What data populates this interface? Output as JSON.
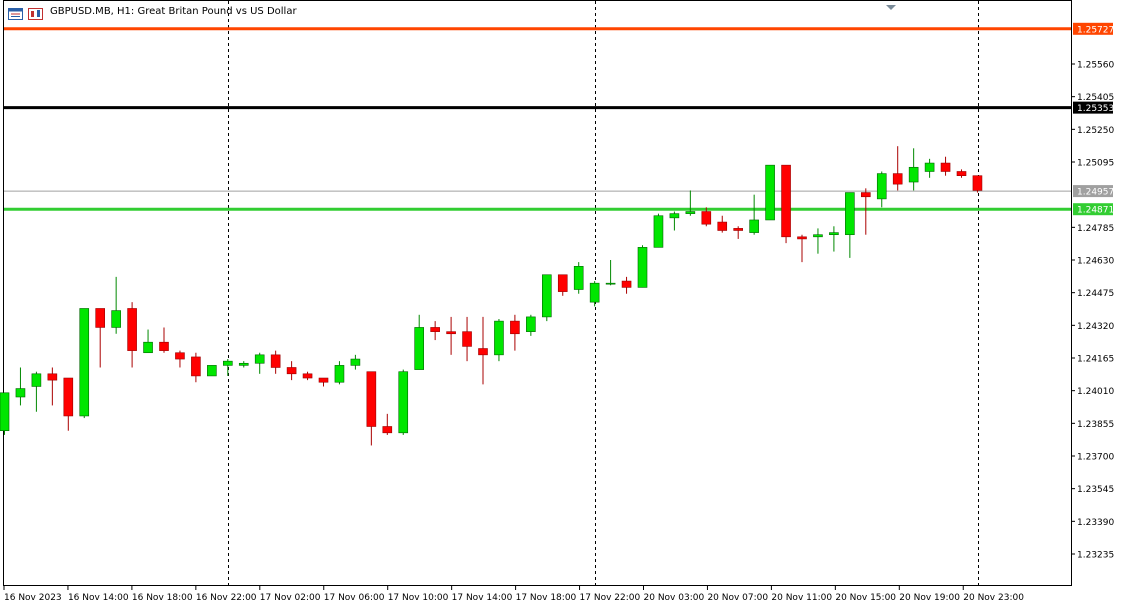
{
  "header": {
    "title": "GBPUSD.MB, H1:  Great Britan Pound vs US Dollar"
  },
  "colors": {
    "bull": "#00e600",
    "bear": "#ff0000",
    "bull_wick": "#008800",
    "bear_wick": "#aa0000",
    "resistance_line": "#ff4500",
    "black_line": "#000000",
    "green_line": "#32cd32",
    "bid_line": "#a0a0a0"
  },
  "price_axis": {
    "ticks": [
      "1.25560",
      "1.25405",
      "1.25250",
      "1.25095",
      "1.24785",
      "1.24630",
      "1.24475",
      "1.24320",
      "1.24165",
      "1.24010",
      "1.23855",
      "1.23700",
      "1.23545",
      "1.23390",
      "1.23235"
    ]
  },
  "time_axis": {
    "labels": [
      "16 Nov 2023",
      "16 Nov 14:00",
      "16 Nov 18:00",
      "16 Nov 22:00",
      "17 Nov 02:00",
      "17 Nov 06:00",
      "17 Nov 10:00",
      "17 Nov 14:00",
      "17 Nov 18:00",
      "17 Nov 22:00",
      "20 Nov 03:00",
      "20 Nov 07:00",
      "20 Nov 11:00",
      "20 Nov 15:00",
      "20 Nov 19:00",
      "20 Nov 23:00"
    ]
  },
  "levels": [
    {
      "id": "orange",
      "price": 1.25727,
      "label": "1.25727",
      "color": "#ff4500"
    },
    {
      "id": "black",
      "price": 1.25353,
      "label": "1.25353",
      "color": "#000000"
    },
    {
      "id": "bid",
      "price": 1.24957,
      "label": "1.24957",
      "color": "#a0a0a0"
    },
    {
      "id": "green",
      "price": 1.24871,
      "label": "1.24871",
      "color": "#32cd32"
    }
  ],
  "chart_data": {
    "type": "candlestick",
    "symbol": "GBPUSD.MB",
    "timeframe": "H1",
    "ylim": [
      1.231,
      1.259
    ],
    "candles": [
      {
        "o": 1.2382,
        "h": 1.24,
        "l": 1.238,
        "c": 1.24
      },
      {
        "o": 1.2398,
        "h": 1.2412,
        "l": 1.2394,
        "c": 1.2402
      },
      {
        "o": 1.2403,
        "h": 1.241,
        "l": 1.2391,
        "c": 1.2409
      },
      {
        "o": 1.2409,
        "h": 1.2412,
        "l": 1.2394,
        "c": 1.2406
      },
      {
        "o": 1.2407,
        "h": 1.2407,
        "l": 1.2382,
        "c": 1.2389
      },
      {
        "o": 1.2389,
        "h": 1.244,
        "l": 1.2388,
        "c": 1.244
      },
      {
        "o": 1.244,
        "h": 1.244,
        "l": 1.2412,
        "c": 1.2431
      },
      {
        "o": 1.2431,
        "h": 1.2455,
        "l": 1.2428,
        "c": 1.2439
      },
      {
        "o": 1.244,
        "h": 1.2443,
        "l": 1.2412,
        "c": 1.242
      },
      {
        "o": 1.2419,
        "h": 1.243,
        "l": 1.2419,
        "c": 1.2424
      },
      {
        "o": 1.2424,
        "h": 1.2431,
        "l": 1.2419,
        "c": 1.242
      },
      {
        "o": 1.2419,
        "h": 1.242,
        "l": 1.2412,
        "c": 1.2416
      },
      {
        "o": 1.2417,
        "h": 1.2419,
        "l": 1.2405,
        "c": 1.2408
      },
      {
        "o": 1.2408,
        "h": 1.2413,
        "l": 1.2408,
        "c": 1.2413
      },
      {
        "o": 1.2413,
        "h": 1.2416,
        "l": 1.2408,
        "c": 1.2415
      },
      {
        "o": 1.2413,
        "h": 1.2415,
        "l": 1.2412,
        "c": 1.2414
      },
      {
        "o": 1.2414,
        "h": 1.2419,
        "l": 1.2409,
        "c": 1.2418
      },
      {
        "o": 1.2418,
        "h": 1.242,
        "l": 1.2409,
        "c": 1.2412
      },
      {
        "o": 1.2412,
        "h": 1.2415,
        "l": 1.2406,
        "c": 1.2409
      },
      {
        "o": 1.2409,
        "h": 1.241,
        "l": 1.2406,
        "c": 1.2407
      },
      {
        "o": 1.2407,
        "h": 1.2407,
        "l": 1.2403,
        "c": 1.2405
      },
      {
        "o": 1.2405,
        "h": 1.2415,
        "l": 1.2404,
        "c": 1.2413
      },
      {
        "o": 1.2413,
        "h": 1.2418,
        "l": 1.2411,
        "c": 1.2416
      },
      {
        "o": 1.241,
        "h": 1.241,
        "l": 1.2375,
        "c": 1.2384
      },
      {
        "o": 1.2384,
        "h": 1.239,
        "l": 1.238,
        "c": 1.2381
      },
      {
        "o": 1.2381,
        "h": 1.2411,
        "l": 1.238,
        "c": 1.241
      },
      {
        "o": 1.2411,
        "h": 1.2437,
        "l": 1.2411,
        "c": 1.2431
      },
      {
        "o": 1.2431,
        "h": 1.2434,
        "l": 1.2425,
        "c": 1.2429
      },
      {
        "o": 1.2429,
        "h": 1.2436,
        "l": 1.2418,
        "c": 1.2428
      },
      {
        "o": 1.2429,
        "h": 1.2436,
        "l": 1.2415,
        "c": 1.2422
      },
      {
        "o": 1.2421,
        "h": 1.2436,
        "l": 1.2404,
        "c": 1.2418
      },
      {
        "o": 1.2418,
        "h": 1.2435,
        "l": 1.2415,
        "c": 1.2434
      },
      {
        "o": 1.2434,
        "h": 1.2437,
        "l": 1.242,
        "c": 1.2428
      },
      {
        "o": 1.2429,
        "h": 1.2437,
        "l": 1.2427,
        "c": 1.2436
      },
      {
        "o": 1.2436,
        "h": 1.2456,
        "l": 1.2434,
        "c": 1.2456
      },
      {
        "o": 1.2456,
        "h": 1.2456,
        "l": 1.2446,
        "c": 1.2448
      },
      {
        "o": 1.2449,
        "h": 1.2462,
        "l": 1.2447,
        "c": 1.246
      },
      {
        "o": 1.2443,
        "h": 1.2453,
        "l": 1.2441,
        "c": 1.2452
      },
      {
        "o": 1.2452,
        "h": 1.2463,
        "l": 1.2451,
        "c": 1.2452
      },
      {
        "o": 1.2453,
        "h": 1.2455,
        "l": 1.2447,
        "c": 1.245
      },
      {
        "o": 1.245,
        "h": 1.247,
        "l": 1.245,
        "c": 1.2469
      },
      {
        "o": 1.2469,
        "h": 1.2485,
        "l": 1.2469,
        "c": 1.2484
      },
      {
        "o": 1.2483,
        "h": 1.2486,
        "l": 1.2477,
        "c": 1.2485
      },
      {
        "o": 1.2485,
        "h": 1.2496,
        "l": 1.2484,
        "c": 1.2486
      },
      {
        "o": 1.2486,
        "h": 1.2488,
        "l": 1.2479,
        "c": 1.248
      },
      {
        "o": 1.2481,
        "h": 1.2484,
        "l": 1.2476,
        "c": 1.2477
      },
      {
        "o": 1.2478,
        "h": 1.2479,
        "l": 1.2473,
        "c": 1.2477
      },
      {
        "o": 1.2476,
        "h": 1.2494,
        "l": 1.2475,
        "c": 1.2482
      },
      {
        "o": 1.2482,
        "h": 1.2508,
        "l": 1.2482,
        "c": 1.2508
      },
      {
        "o": 1.2508,
        "h": 1.2508,
        "l": 1.2471,
        "c": 1.2474
      },
      {
        "o": 1.2474,
        "h": 1.2475,
        "l": 1.2462,
        "c": 1.2473
      },
      {
        "o": 1.2474,
        "h": 1.2478,
        "l": 1.2466,
        "c": 1.2475
      },
      {
        "o": 1.2475,
        "h": 1.2479,
        "l": 1.2467,
        "c": 1.2476
      },
      {
        "o": 1.2475,
        "h": 1.2495,
        "l": 1.2464,
        "c": 1.2495
      },
      {
        "o": 1.2495,
        "h": 1.2497,
        "l": 1.2475,
        "c": 1.2493
      },
      {
        "o": 1.2492,
        "h": 1.2505,
        "l": 1.2488,
        "c": 1.2504
      },
      {
        "o": 1.2504,
        "h": 1.2517,
        "l": 1.2496,
        "c": 1.2499
      },
      {
        "o": 1.25,
        "h": 1.2516,
        "l": 1.2496,
        "c": 1.2507
      },
      {
        "o": 1.2505,
        "h": 1.2511,
        "l": 1.2502,
        "c": 1.2509
      },
      {
        "o": 1.2509,
        "h": 1.2512,
        "l": 1.2503,
        "c": 1.2505
      },
      {
        "o": 1.2505,
        "h": 1.2506,
        "l": 1.2502,
        "c": 1.2503
      },
      {
        "o": 1.2503,
        "h": 1.2503,
        "l": 1.2495,
        "c": 1.2496
      }
    ]
  }
}
